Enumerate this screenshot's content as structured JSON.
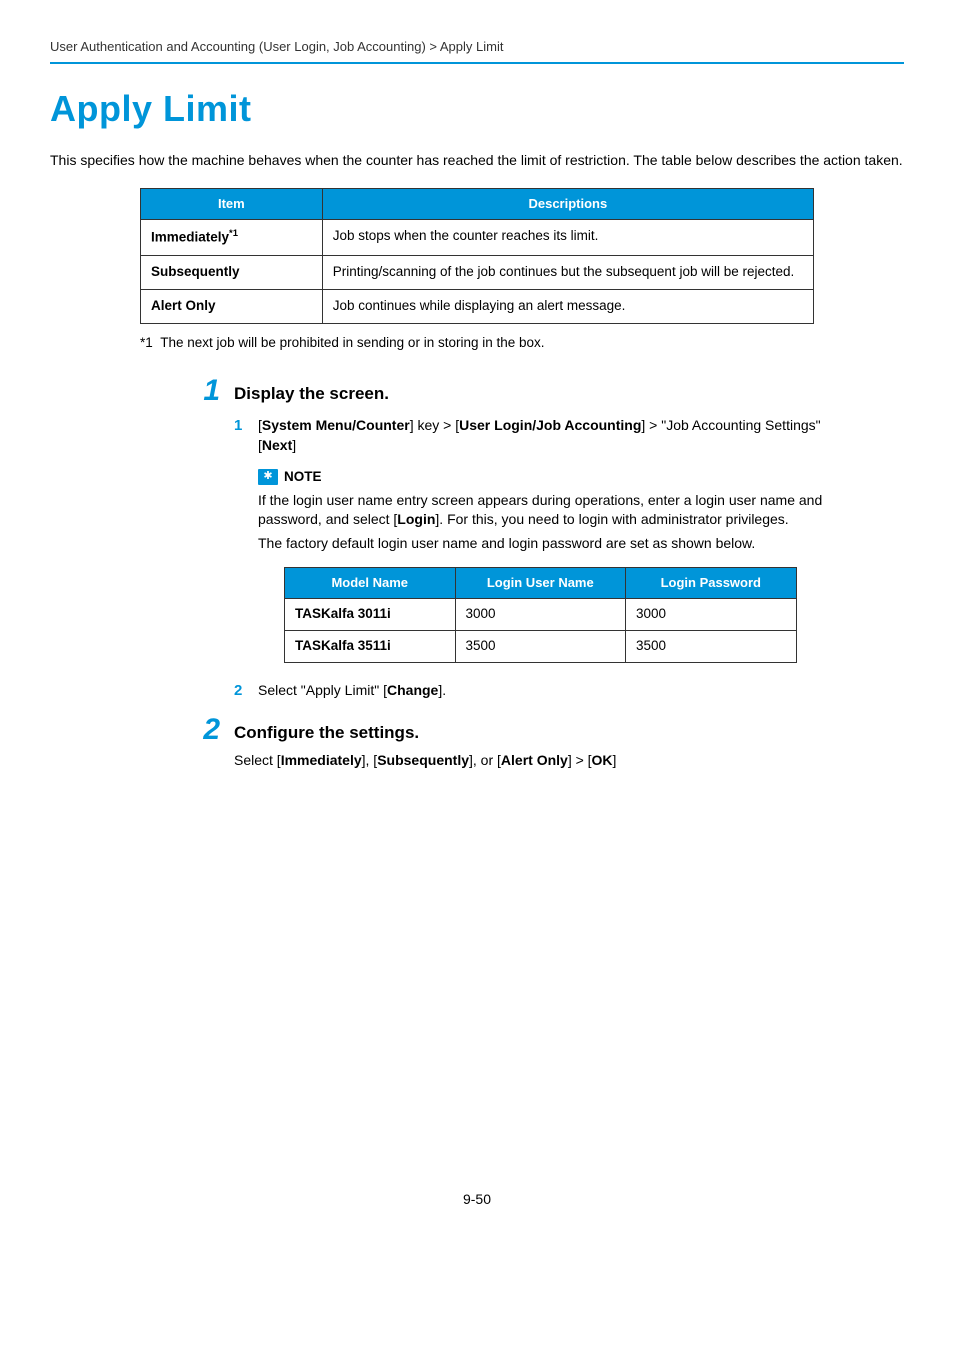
{
  "breadcrumb": "User Authentication and Accounting (User Login, Job Accounting) > Apply Limit",
  "title": "Apply Limit",
  "intro": "This specifies how the machine behaves when the counter has reached the limit of restriction. The table below describes the action taken.",
  "items_table": {
    "headers": {
      "item": "Item",
      "desc": "Descriptions"
    },
    "rows": [
      {
        "item_html": "Immediately<sup>*1</sup>",
        "desc": "Job stops when the counter reaches its limit."
      },
      {
        "item_html": "Subsequently",
        "desc": "Printing/scanning of the job continues but the subsequent job will be rejected."
      },
      {
        "item_html": "Alert Only",
        "desc": "Job continues while displaying an alert message."
      }
    ]
  },
  "footnote": {
    "label": "*1",
    "text": "The next job will be prohibited in sending or in storing in the box."
  },
  "step1": {
    "num": "1",
    "title": "Display the screen.",
    "sub1": {
      "num": "1",
      "html": "[<span class=\"b\">System Menu/Counter</span>] key > [<span class=\"b\">User Login/Job Accounting</span>] > \"Job Accounting Settings\" [<span class=\"b\">Next</span>]"
    },
    "note": {
      "label": "NOTE",
      "p1_html": "If the login user name entry screen appears during operations, enter a login user name and password, and select [<span class=\"b\">Login</span>]. For this, you need to login with administrator privileges.",
      "p2": "The factory default login user name and login password are set as shown below."
    },
    "login_table": {
      "headers": {
        "model": "Model Name",
        "user": "Login User Name",
        "pass": "Login Password"
      },
      "rows": [
        {
          "model": "TASKalfa 3011i",
          "user": "3000",
          "pass": "3000"
        },
        {
          "model": "TASKalfa 3511i",
          "user": "3500",
          "pass": "3500"
        }
      ]
    },
    "sub2": {
      "num": "2",
      "html": "Select \"Apply Limit\" [<span class=\"b\">Change</span>]."
    }
  },
  "step2": {
    "num": "2",
    "title": "Configure the settings.",
    "body_html": "Select [<span class=\"b\">Immediately</span>], [<span class=\"b\">Subsequently</span>], or [<span class=\"b\">Alert Only</span>] > [<span class=\"b\">OK</span>]"
  },
  "page_num": "9-50",
  "colors": {
    "accent": "#0095d9",
    "text": "#000000",
    "border": "#333333",
    "bg": "#ffffff"
  }
}
